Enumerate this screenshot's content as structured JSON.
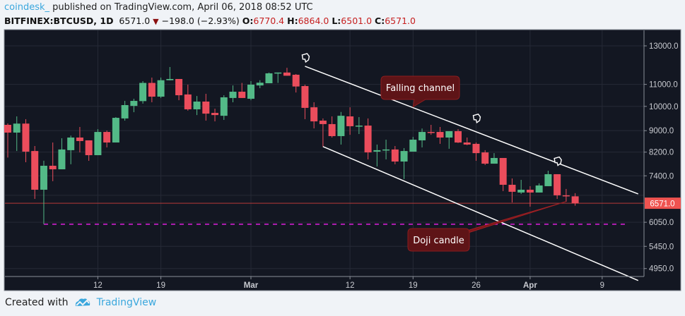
{
  "header": {
    "author": "coindesk_",
    "published": "published on TradingView.com, April 06, 2018 08:52 UTC",
    "symbol": "BITFINEX:BTCUSD, 1D",
    "last": "6571.0",
    "change": "−198.0 (−2.93%)",
    "o_label": "O:",
    "o": "6770.4",
    "h_label": "H:",
    "h": "6864.0",
    "l_label": "L:",
    "l": "6501.0",
    "c_label": "C:",
    "c": "6571.0"
  },
  "footer": {
    "created_with": "Created with",
    "brand": "TradingView"
  },
  "colors": {
    "up": "#53b987",
    "down": "#eb4d5c",
    "background": "#131722",
    "grid": "#262a36",
    "support": "#e020e0",
    "price_line": "#b83a3a"
  },
  "chart_data": {
    "type": "candlestick",
    "title": "BITFINEX:BTCUSD, 1D",
    "y_scale": "log",
    "ylim": [
      4800,
      13600
    ],
    "y_ticks": [
      "13000.0",
      "11000.0",
      "10000.0",
      "9000.0",
      "8200.0",
      "7400.0",
      "6050.0",
      "5450.0",
      "4950.0"
    ],
    "y_tick_values": [
      13000,
      11000,
      10000,
      9000,
      8200,
      7400,
      6050,
      5450,
      4950
    ],
    "x_ticks": [
      {
        "label": "12",
        "day": 10,
        "bold": false
      },
      {
        "label": "19",
        "day": 17,
        "bold": false
      },
      {
        "label": "Mar",
        "day": 27,
        "bold": true
      },
      {
        "label": "12",
        "day": 38,
        "bold": false
      },
      {
        "label": "19",
        "day": 45,
        "bold": false
      },
      {
        "label": "26",
        "day": 52,
        "bold": false
      },
      {
        "label": "Apr",
        "day": 58,
        "bold": true
      },
      {
        "label": "9",
        "day": 66,
        "bold": false
      }
    ],
    "start_date": "2018-02-02",
    "ohlc": [
      [
        9230,
        9286,
        8010,
        8925
      ],
      [
        8925,
        9575,
        8240,
        9280
      ],
      [
        9280,
        9460,
        7849,
        8218
      ],
      [
        8240,
        8420,
        6695,
        6967
      ],
      [
        6967,
        7900,
        6035,
        7730
      ],
      [
        7730,
        8550,
        7230,
        7612
      ],
      [
        7612,
        8710,
        7612,
        8295
      ],
      [
        8270,
        8810,
        7780,
        8736
      ],
      [
        8736,
        9146,
        8190,
        8604
      ],
      [
        8630,
        8630,
        7897,
        8093
      ],
      [
        8093,
        9060,
        8093,
        8950
      ],
      [
        8950,
        9007,
        8370,
        8550
      ],
      [
        8550,
        9545,
        8550,
        9515
      ],
      [
        9490,
        10240,
        9400,
        10055
      ],
      [
        10020,
        10335,
        9750,
        10240
      ],
      [
        10230,
        11157,
        10120,
        11070
      ],
      [
        11070,
        11330,
        10180,
        10430
      ],
      [
        10430,
        11330,
        10370,
        11200
      ],
      [
        11200,
        11860,
        11190,
        11260
      ],
      [
        11260,
        11260,
        10270,
        10494
      ],
      [
        10530,
        10988,
        9815,
        9873
      ],
      [
        9873,
        10460,
        9630,
        10210
      ],
      [
        10210,
        10560,
        9400,
        9690
      ],
      [
        9720,
        9900,
        9370,
        9630
      ],
      [
        9600,
        10494,
        9430,
        10400
      ],
      [
        10370,
        10950,
        10180,
        10656
      ],
      [
        10656,
        11070,
        10370,
        10370
      ],
      [
        10335,
        11157,
        10270,
        10988
      ],
      [
        10950,
        11200,
        10821,
        11080
      ],
      [
        11054,
        11580,
        11054,
        11540
      ],
      [
        11540,
        11580,
        11070,
        11580
      ],
      [
        11580,
        11820,
        11420,
        11420
      ],
      [
        11470,
        11504,
        10620,
        10900
      ],
      [
        10920,
        10988,
        9460,
        9935
      ],
      [
        9960,
        10180,
        9090,
        9370
      ],
      [
        9400,
        9490,
        8390,
        9260
      ],
      [
        9260,
        9575,
        8736,
        8790
      ],
      [
        8790,
        9760,
        8474,
        9600
      ],
      [
        9575,
        9960,
        8840,
        9175
      ],
      [
        9175,
        9545,
        8870,
        9200
      ],
      [
        9200,
        9490,
        7945,
        8190
      ],
      [
        8218,
        8474,
        7705,
        8270
      ],
      [
        8270,
        8656,
        7945,
        8295
      ],
      [
        8295,
        8420,
        7780,
        7873
      ],
      [
        7873,
        8345,
        7295,
        8240
      ],
      [
        8218,
        8760,
        8218,
        8656
      ],
      [
        8630,
        9085,
        8370,
        8950
      ],
      [
        8950,
        9230,
        8840,
        8925
      ],
      [
        8950,
        9146,
        8500,
        8736
      ],
      [
        8736,
        8980,
        8320,
        8980
      ],
      [
        8980,
        9060,
        8530,
        8550
      ],
      [
        8550,
        8736,
        8450,
        8474
      ],
      [
        8500,
        8550,
        7897,
        8165
      ],
      [
        8190,
        8270,
        7755,
        7800
      ],
      [
        7800,
        8165,
        7800,
        7995
      ],
      [
        7995,
        7995,
        6925,
        7118
      ],
      [
        7118,
        7316,
        6592,
        6905
      ],
      [
        6883,
        7272,
        6841,
        6967
      ],
      [
        6967,
        7075,
        6474,
        6883
      ],
      [
        6883,
        7162,
        6883,
        7097
      ],
      [
        7075,
        7566,
        7075,
        7452
      ],
      [
        7452,
        7452,
        6695,
        6800
      ],
      [
        6800,
        6990,
        6613,
        6790
      ],
      [
        6770.4,
        6864,
        6501,
        6571
      ]
    ],
    "current_price_label": "6571.0",
    "current_price": 6571,
    "support_level": 6000,
    "trendlines": [
      {
        "name": "upper-channel",
        "from": {
          "day": 33,
          "price": 11900
        },
        "to": {
          "day": 70,
          "price": 6840
        }
      },
      {
        "name": "lower-channel",
        "from": {
          "day": 35,
          "price": 8400
        },
        "to": {
          "day": 70,
          "price": 4700
        }
      }
    ],
    "annotations": [
      {
        "text": "Falling channel",
        "target_day": 45,
        "target_price": 9980
      },
      {
        "text": "Doji candle",
        "target_day": 62,
        "target_price": 6600
      }
    ]
  }
}
